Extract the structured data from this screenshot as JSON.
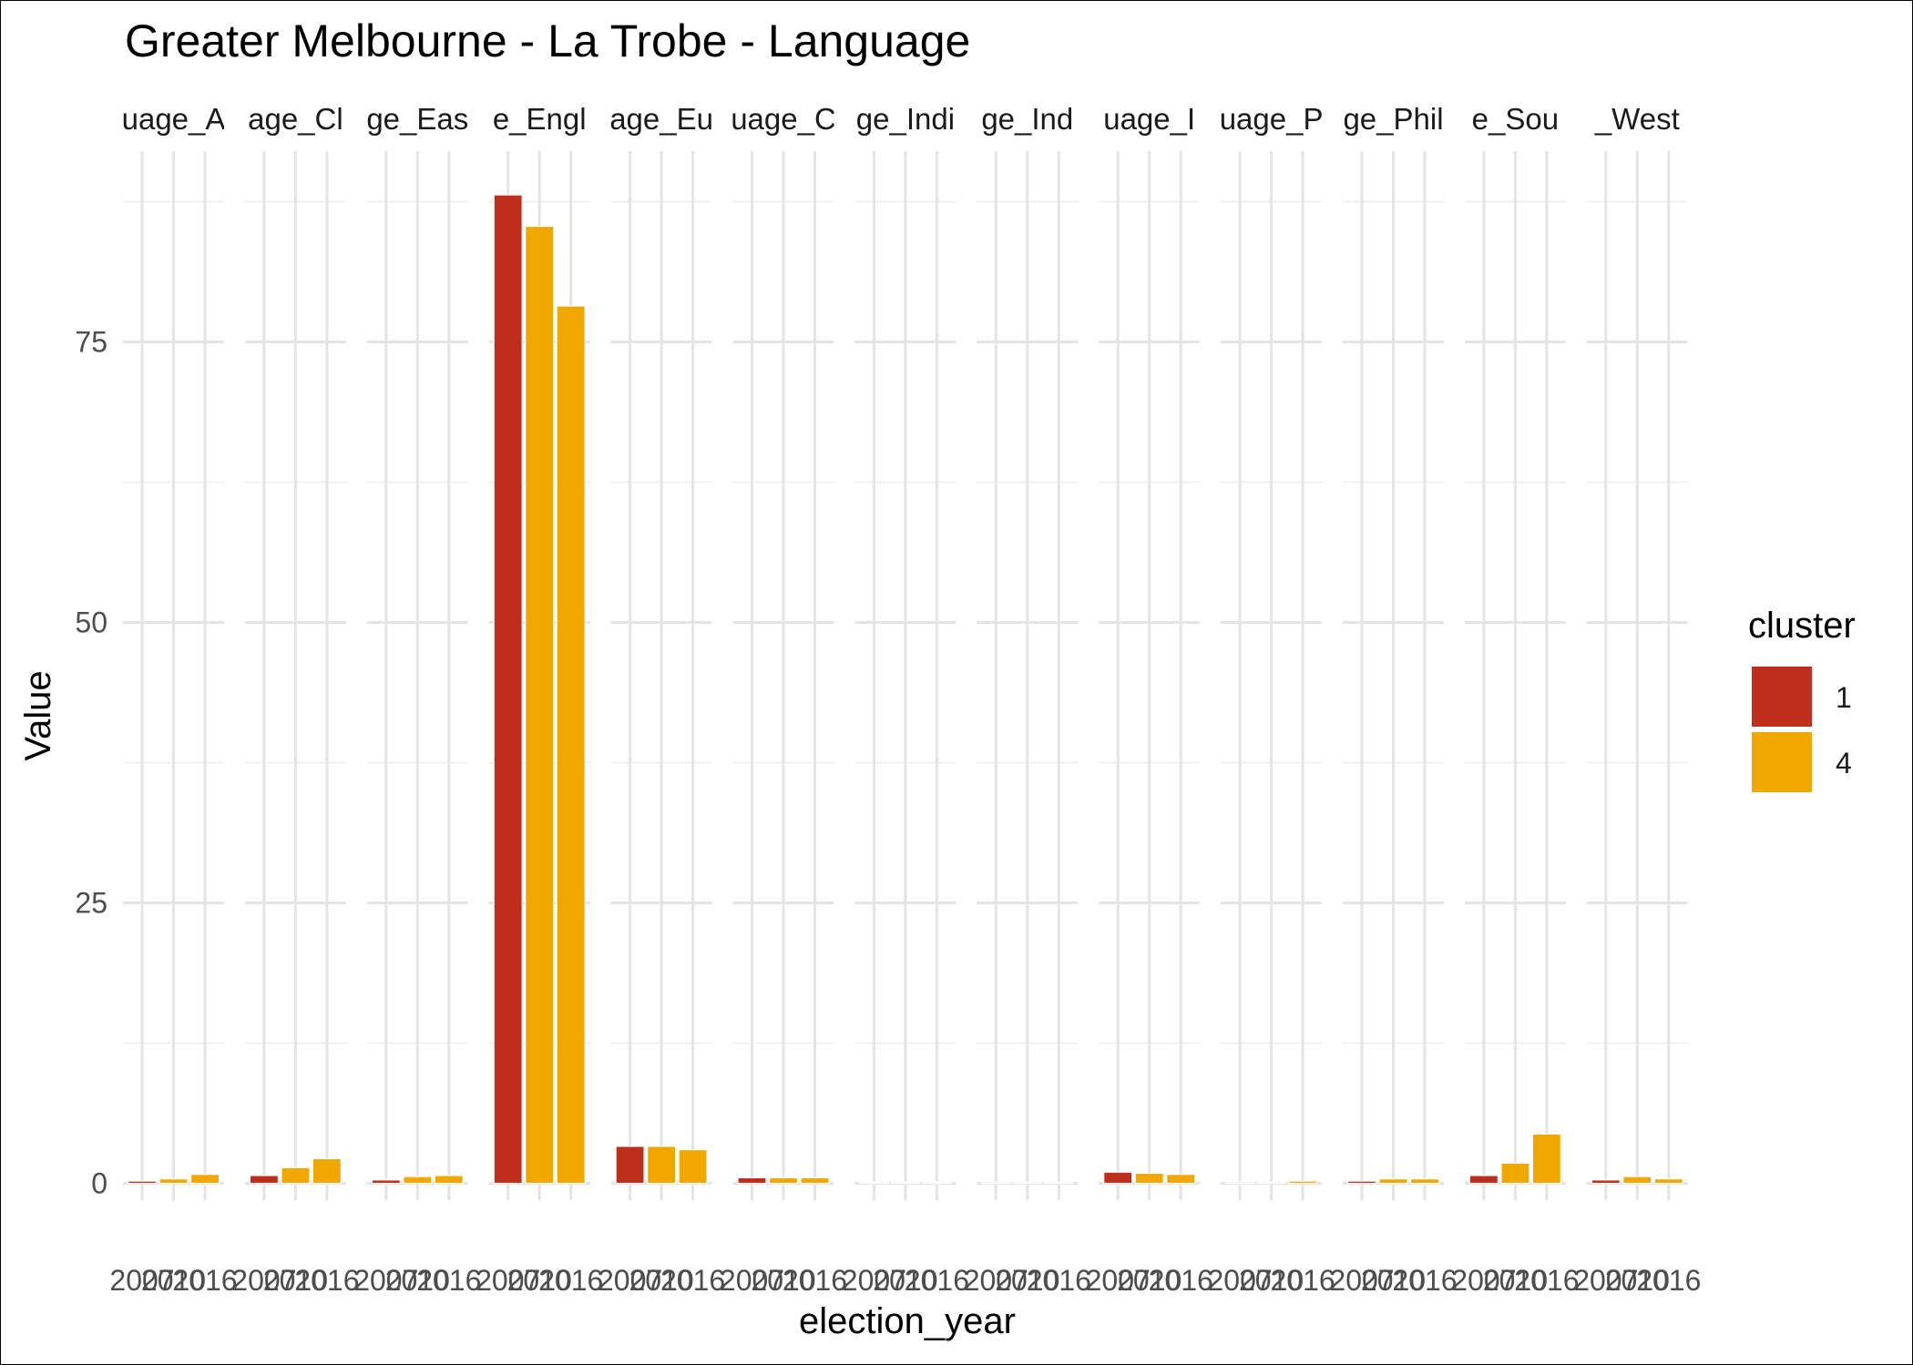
{
  "chart_data": {
    "type": "bar",
    "title": "Greater Melbourne - La Trobe - Language",
    "xlabel": "election_year",
    "ylabel": "Value",
    "ylim": [
      -1.5,
      92
    ],
    "yticks": [
      0,
      25,
      50,
      75
    ],
    "x_ticks": [
      "2007",
      "2010",
      "2016"
    ],
    "grid": true,
    "legend": {
      "title": "cluster",
      "position": "right"
    },
    "series": [
      {
        "name": "1",
        "color": "#BF2E1A"
      },
      {
        "name": "4",
        "color": "#F0A800"
      }
    ],
    "facets": [
      {
        "strip_label": "uage_A",
        "bars": [
          {
            "x": "2007",
            "cluster": "1",
            "value": 0.2
          },
          {
            "x": "2010",
            "cluster": "4",
            "value": 0.4
          },
          {
            "x": "2016",
            "cluster": "4",
            "value": 0.8
          }
        ]
      },
      {
        "strip_label": "age_Cl",
        "bars": [
          {
            "x": "2007",
            "cluster": "1",
            "value": 0.7
          },
          {
            "x": "2010",
            "cluster": "4",
            "value": 1.4
          },
          {
            "x": "2016",
            "cluster": "4",
            "value": 2.2
          }
        ]
      },
      {
        "strip_label": "ge_Eas",
        "bars": [
          {
            "x": "2007",
            "cluster": "1",
            "value": 0.3
          },
          {
            "x": "2010",
            "cluster": "4",
            "value": 0.6
          },
          {
            "x": "2016",
            "cluster": "4",
            "value": 0.7
          }
        ]
      },
      {
        "strip_label": "e_Engl",
        "bars": [
          {
            "x": "2007",
            "cluster": "1",
            "value": 88.1
          },
          {
            "x": "2010",
            "cluster": "4",
            "value": 85.3
          },
          {
            "x": "2016",
            "cluster": "4",
            "value": 78.2
          }
        ]
      },
      {
        "strip_label": "age_Eu",
        "bars": [
          {
            "x": "2007",
            "cluster": "1",
            "value": 3.3
          },
          {
            "x": "2010",
            "cluster": "4",
            "value": 3.3
          },
          {
            "x": "2016",
            "cluster": "4",
            "value": 3.0
          }
        ]
      },
      {
        "strip_label": "uage_C",
        "bars": [
          {
            "x": "2007",
            "cluster": "1",
            "value": 0.5
          },
          {
            "x": "2010",
            "cluster": "4",
            "value": 0.5
          },
          {
            "x": "2016",
            "cluster": "4",
            "value": 0.5
          }
        ]
      },
      {
        "strip_label": "ge_Indi",
        "bars": [
          {
            "x": "2007",
            "cluster": "1",
            "value": 0.0
          },
          {
            "x": "2010",
            "cluster": "4",
            "value": 0.0
          },
          {
            "x": "2016",
            "cluster": "4",
            "value": 0.0
          }
        ]
      },
      {
        "strip_label": "ge_Ind",
        "bars": [
          {
            "x": "2007",
            "cluster": "1",
            "value": 0.1
          },
          {
            "x": "2010",
            "cluster": "4",
            "value": 0.1
          },
          {
            "x": "2016",
            "cluster": "4",
            "value": 0.1
          }
        ]
      },
      {
        "strip_label": "uage_I",
        "bars": [
          {
            "x": "2007",
            "cluster": "1",
            "value": 1.0
          },
          {
            "x": "2010",
            "cluster": "4",
            "value": 0.9
          },
          {
            "x": "2016",
            "cluster": "4",
            "value": 0.8
          }
        ]
      },
      {
        "strip_label": "uage_P",
        "bars": [
          {
            "x": "2007",
            "cluster": "1",
            "value": 0.1
          },
          {
            "x": "2010",
            "cluster": "4",
            "value": 0.1
          },
          {
            "x": "2016",
            "cluster": "4",
            "value": 0.2
          }
        ]
      },
      {
        "strip_label": "ge_Phil",
        "bars": [
          {
            "x": "2007",
            "cluster": "1",
            "value": 0.2
          },
          {
            "x": "2010",
            "cluster": "4",
            "value": 0.4
          },
          {
            "x": "2016",
            "cluster": "4",
            "value": 0.4
          }
        ]
      },
      {
        "strip_label": "e_Sou",
        "bars": [
          {
            "x": "2007",
            "cluster": "1",
            "value": 0.7
          },
          {
            "x": "2010",
            "cluster": "4",
            "value": 1.8
          },
          {
            "x": "2016",
            "cluster": "4",
            "value": 4.4
          }
        ]
      },
      {
        "strip_label": "_West",
        "bars": [
          {
            "x": "2007",
            "cluster": "1",
            "value": 0.3
          },
          {
            "x": "2010",
            "cluster": "4",
            "value": 0.6
          },
          {
            "x": "2016",
            "cluster": "4",
            "value": 0.4
          }
        ]
      }
    ]
  }
}
